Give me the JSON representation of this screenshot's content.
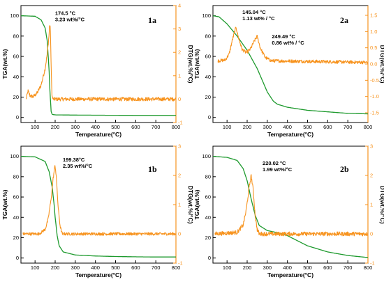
{
  "colors": {
    "tga": "#1e9a2e",
    "dtg": "#f7931e",
    "axis": "#000000",
    "dtg_axis": "#f7931e"
  },
  "chart_data": [
    {
      "panel": "1a",
      "type": "line",
      "xlabel": "Temperature(°C)",
      "ylabel_left": "TGA(wt.%)",
      "ylabel_right": "DTG(wt.%/°C)",
      "xlim": [
        30,
        800
      ],
      "ylim_left": [
        -5,
        110
      ],
      "ylim_right": [
        -1,
        4
      ],
      "x_ticks": [
        100,
        200,
        300,
        400,
        500,
        600,
        700,
        800
      ],
      "y_ticks_left": [
        0,
        20,
        40,
        60,
        80,
        100
      ],
      "y_ticks_right": [
        -1,
        0,
        1,
        2,
        3,
        4
      ],
      "annotations": [
        {
          "lines": [
            "174.5 °C",
            "3.23 wt%/°C"
          ],
          "x": 174.5,
          "y": 3.23
        }
      ],
      "series": [
        {
          "name": "TGA",
          "axis": "left",
          "x": [
            30,
            100,
            130,
            150,
            160,
            165,
            170,
            175,
            180,
            185,
            200,
            300,
            400,
            500,
            600,
            700,
            800
          ],
          "y": [
            100,
            99.5,
            96,
            88,
            76,
            62,
            45,
            22,
            6,
            3,
            2.5,
            2.3,
            2.2,
            2.1,
            2,
            2,
            2
          ]
        },
        {
          "name": "DTG",
          "axis": "right",
          "noise": 0.08,
          "x": [
            55,
            60,
            65,
            75,
            90,
            110,
            130,
            150,
            160,
            165,
            170,
            172,
            174.5,
            177,
            180,
            183,
            185,
            190,
            800
          ],
          "y": [
            0,
            0.15,
            0.35,
            0.15,
            0.1,
            0.25,
            0.6,
            1.3,
            1.9,
            2.3,
            2.8,
            3.1,
            3.23,
            2.7,
            1.4,
            0.4,
            0.1,
            0,
            0
          ]
        }
      ]
    },
    {
      "panel": "2a",
      "type": "line",
      "xlabel": "Temperature(°C)",
      "ylabel_left": "TGA(wt.%)",
      "ylabel_right": "DTG(wt.%/°C)",
      "xlim": [
        30,
        800
      ],
      "ylim_left": [
        -5,
        110
      ],
      "ylim_right": [
        -1.8,
        1.8
      ],
      "x_ticks": [
        100,
        200,
        300,
        400,
        500,
        600,
        700,
        800
      ],
      "y_ticks_left": [
        0,
        20,
        40,
        60,
        80,
        100
      ],
      "y_ticks_right": [
        -1.5,
        -1.0,
        -0.5,
        0.0,
        0.5,
        1.0,
        1.5
      ],
      "annotations": [
        {
          "lines": [
            "145.04 °C",
            "1.13 wt% / °C"
          ],
          "x": 145.04,
          "y": 1.13
        },
        {
          "lines": [
            "249.49 °C",
            "0.86 wt% / °C"
          ],
          "x": 249.49,
          "y": 0.86
        }
      ],
      "series": [
        {
          "name": "TGA",
          "axis": "left",
          "x": [
            30,
            60,
            100,
            150,
            200,
            250,
            300,
            330,
            350,
            400,
            500,
            600,
            700,
            800
          ],
          "y": [
            100,
            99,
            92,
            80,
            66,
            48,
            25,
            16,
            13,
            10,
            7,
            5.5,
            4,
            3.5
          ]
        },
        {
          "name": "DTG",
          "axis": "right",
          "noise": 0.05,
          "x": [
            55,
            90,
            110,
            125,
            140,
            145.04,
            155,
            175,
            195,
            215,
            235,
            249.49,
            265,
            290,
            320,
            800
          ],
          "y": [
            0.1,
            0.12,
            0.3,
            0.7,
            1.05,
            1.13,
            0.85,
            0.45,
            0.35,
            0.45,
            0.7,
            0.86,
            0.5,
            0.2,
            0.1,
            0.05
          ]
        }
      ]
    },
    {
      "panel": "1b",
      "type": "line",
      "xlabel": "Temperature(°C)",
      "ylabel_left": "TGA(wt.%)",
      "ylabel_right": "DTG(wt.%/°C)",
      "xlim": [
        30,
        800
      ],
      "ylim_left": [
        -5,
        110
      ],
      "ylim_right": [
        -1,
        3
      ],
      "x_ticks": [
        100,
        200,
        300,
        400,
        500,
        600,
        700,
        800
      ],
      "y_ticks_left": [
        0,
        20,
        40,
        60,
        80,
        100
      ],
      "y_ticks_right": [
        -1,
        0,
        1,
        2,
        3
      ],
      "annotations": [
        {
          "lines": [
            "199.38°C",
            "2.35 wt%/°C"
          ],
          "x": 199.38,
          "y": 2.35
        }
      ],
      "series": [
        {
          "name": "TGA",
          "axis": "left",
          "x": [
            30,
            100,
            150,
            170,
            185,
            195,
            200,
            210,
            220,
            240,
            300,
            400,
            500,
            600,
            700,
            800
          ],
          "y": [
            100,
            99.5,
            95,
            85,
            70,
            52,
            40,
            22,
            12,
            6,
            3,
            2,
            1.5,
            1.2,
            1,
            1
          ]
        },
        {
          "name": "DTG",
          "axis": "right",
          "noise": 0.05,
          "x": [
            40,
            120,
            150,
            165,
            180,
            190,
            199.38,
            205,
            215,
            225,
            235,
            800
          ],
          "y": [
            0,
            0,
            0.15,
            0.5,
            1.2,
            1.9,
            2.35,
            2.0,
            0.9,
            0.25,
            0,
            0
          ]
        }
      ]
    },
    {
      "panel": "2b",
      "type": "line",
      "xlabel": "Temperature(°C)",
      "ylabel_left": "TGA(wt.%)",
      "ylabel_right": "DTG(wt.%/°C)",
      "xlim": [
        30,
        800
      ],
      "ylim_left": [
        -5,
        110
      ],
      "ylim_right": [
        -1,
        3
      ],
      "x_ticks": [
        100,
        200,
        300,
        400,
        500,
        600,
        700,
        800
      ],
      "y_ticks_left": [
        0,
        20,
        40,
        60,
        80,
        100
      ],
      "y_ticks_right": [
        -1,
        0,
        1,
        2,
        3
      ],
      "annotations": [
        {
          "lines": [
            "220.02 °C",
            "1.99 wt%/°C"
          ],
          "x": 220.02,
          "y": 1.99
        }
      ],
      "series": [
        {
          "name": "TGA",
          "axis": "left",
          "x": [
            30,
            100,
            150,
            180,
            200,
            220,
            240,
            260,
            300,
            350,
            400,
            450,
            500,
            600,
            700,
            800
          ],
          "y": [
            100,
            99,
            96,
            88,
            76,
            58,
            42,
            32,
            27,
            25,
            22,
            17,
            12,
            6,
            2.5,
            0.5
          ]
        },
        {
          "name": "DTG",
          "axis": "right",
          "noise": 0.07,
          "x": [
            40,
            150,
            180,
            195,
            210,
            220.02,
            230,
            240,
            250,
            260,
            800
          ],
          "y": [
            0,
            0.05,
            0.3,
            0.8,
            1.6,
            1.99,
            1.5,
            0.6,
            0.15,
            0,
            0
          ]
        }
      ]
    }
  ]
}
